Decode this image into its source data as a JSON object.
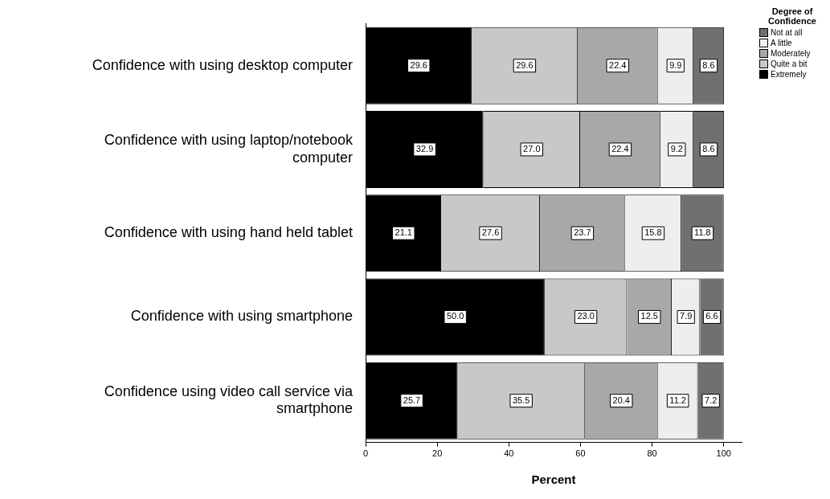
{
  "chart_data": {
    "type": "bar",
    "orientation": "horizontal",
    "stacked": true,
    "xlabel": "Percent",
    "legend_title": "Degree of Confidence",
    "legend": "top right",
    "categories": [
      "Confidence with using desktop computer",
      "Confidence with using laptop/notebook computer",
      "Confidence with using hand held tablet",
      "Confidence with using smartphone",
      "Confidence using video call service via smartphone"
    ],
    "series": [
      {
        "name": "Extremely",
        "color": "#000000",
        "values": [
          29.6,
          32.9,
          21.1,
          50.0,
          25.7
        ],
        "value_labels": [
          "29.6",
          "32.9",
          "21.1",
          "50.0",
          "25.7"
        ]
      },
      {
        "name": "Quite a bit",
        "color": "#c8c8c8",
        "values": [
          29.6,
          27.0,
          27.6,
          23.0,
          35.5
        ],
        "value_labels": [
          "29.6",
          "27.0",
          "27.6",
          "23.0",
          "35.5"
        ]
      },
      {
        "name": "Moderately",
        "color": "#a8a8a8",
        "values": [
          22.4,
          22.4,
          23.7,
          12.5,
          20.4
        ],
        "value_labels": [
          "22.4",
          "22.4",
          "23.7",
          "12.5",
          "20.4"
        ]
      },
      {
        "name": "A little",
        "color": "#eeeeee",
        "values": [
          9.9,
          9.2,
          15.8,
          7.9,
          11.2
        ],
        "value_labels": [
          "9.9",
          "9.2",
          "15.8",
          "7.9",
          "11.2"
        ]
      },
      {
        "name": "Not at all",
        "color": "#707070",
        "values": [
          8.6,
          8.6,
          11.8,
          6.6,
          7.2
        ],
        "value_labels": [
          "8.6",
          "8.6",
          "11.8",
          "6.6",
          "7.2"
        ]
      }
    ],
    "xlim": [
      0,
      105
    ],
    "xticks": [
      0,
      20,
      40,
      60,
      80,
      100
    ],
    "grid": false
  }
}
